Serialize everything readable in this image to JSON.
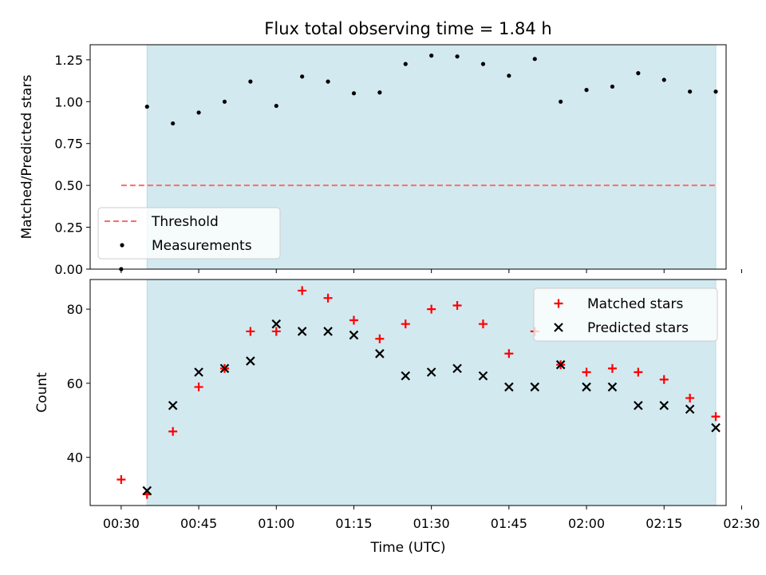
{
  "colors": {
    "shade": "#d3e9f0",
    "threshold": "#ff6b6b",
    "matched": "#ff0000",
    "predicted": "#000000",
    "measurement": "#000000"
  },
  "chart_data": [
    {
      "type": "scatter",
      "title": "Flux total observing time = 1.84 h",
      "xlabel": "",
      "ylabel": "Matched/Predicted stars",
      "x_unit": "minutes after 00:00 UTC",
      "xlim": [
        24,
        147
      ],
      "ylim": [
        0,
        1.34
      ],
      "yticks": [
        "0.00",
        "0.25",
        "0.50",
        "0.75",
        "1.00",
        "1.25"
      ],
      "ytick_values": [
        0,
        0.25,
        0.5,
        0.75,
        1.0,
        1.25
      ],
      "shaded_span": [
        35,
        145
      ],
      "grid": false,
      "legend_position": "lower-left",
      "threshold": {
        "name": "Threshold",
        "y": 0.5,
        "x_range": [
          30,
          145
        ]
      },
      "series": [
        {
          "name": "Measurements",
          "x": [
            30,
            35,
            40,
            45,
            50,
            55,
            60,
            65,
            70,
            75,
            80,
            85,
            90,
            95,
            100,
            105,
            110,
            115,
            120,
            125,
            130,
            135,
            140,
            145
          ],
          "y": [
            0.0,
            0.97,
            0.87,
            0.935,
            1.0,
            1.12,
            0.975,
            1.15,
            1.12,
            1.05,
            1.055,
            1.225,
            1.275,
            1.27,
            1.225,
            1.155,
            1.255,
            1.0,
            1.07,
            1.09,
            1.17,
            1.13,
            1.06,
            1.06
          ]
        }
      ]
    },
    {
      "type": "scatter",
      "title": "",
      "xlabel": "Time (UTC)",
      "ylabel": "Count",
      "x_unit": "minutes after 00:00 UTC",
      "xlim": [
        24,
        147
      ],
      "ylim": [
        27,
        88
      ],
      "xticks": [
        "00:30",
        "00:45",
        "01:00",
        "01:15",
        "01:30",
        "01:45",
        "02:00",
        "02:15",
        "02:30"
      ],
      "xtick_values": [
        30,
        45,
        60,
        75,
        90,
        105,
        120,
        135,
        150
      ],
      "yticks": [
        "40",
        "60",
        "80"
      ],
      "ytick_values": [
        40,
        60,
        80
      ],
      "shaded_span": [
        35,
        145
      ],
      "grid": false,
      "legend_position": "top-right",
      "series": [
        {
          "name": "Matched stars",
          "x": [
            30,
            35,
            40,
            45,
            50,
            55,
            60,
            65,
            70,
            75,
            80,
            85,
            90,
            95,
            100,
            105,
            110,
            115,
            120,
            125,
            130,
            135,
            140,
            145
          ],
          "y": [
            34,
            30,
            47,
            59,
            64,
            74,
            74,
            85,
            83,
            77,
            72,
            76,
            80,
            81,
            76,
            68,
            74,
            65,
            63,
            64,
            63,
            61,
            56,
            51
          ]
        },
        {
          "name": "Predicted stars",
          "x": [
            35,
            40,
            45,
            50,
            55,
            60,
            65,
            70,
            75,
            80,
            85,
            90,
            95,
            100,
            105,
            110,
            115,
            120,
            125,
            130,
            135,
            140,
            145
          ],
          "y": [
            31,
            54,
            63,
            64,
            66,
            76,
            74,
            74,
            73,
            68,
            62,
            63,
            64,
            62,
            59,
            59,
            65,
            59,
            59,
            54,
            54,
            53,
            48
          ]
        }
      ]
    }
  ]
}
